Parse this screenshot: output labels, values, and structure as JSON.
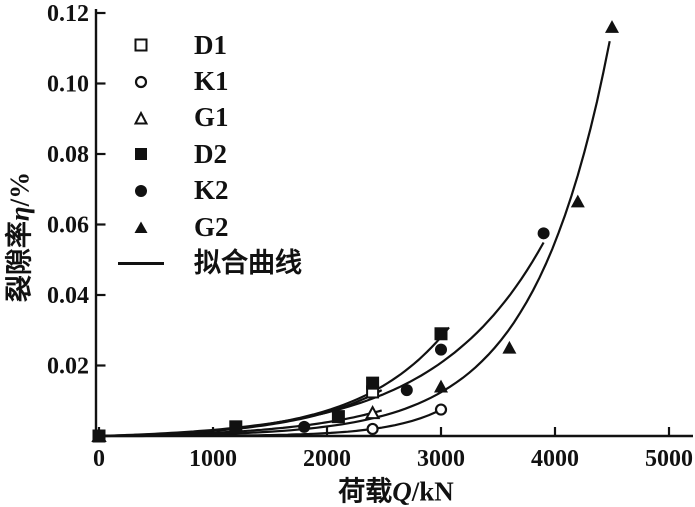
{
  "figure": {
    "background": "#ffffff",
    "ink": "#111111"
  },
  "chart_data": {
    "type": "scatter",
    "title": "",
    "xlabel": {
      "pre": "荷载",
      "var": "Q",
      "post": "/kN"
    },
    "ylabel": {
      "pre": "裂隙率",
      "var": "η",
      "post": "/%"
    },
    "xlim": [
      0,
      5000
    ],
    "ylim": [
      0,
      0.12
    ],
    "x_ticks": [
      0,
      1000,
      2000,
      3000,
      4000,
      5000
    ],
    "x_tick_labels": [
      "0",
      "1000",
      "2000",
      "3000",
      "4000",
      "5000"
    ],
    "y_ticks": [
      0.02,
      0.04,
      0.06,
      0.08,
      0.1,
      0.12
    ],
    "y_tick_labels": [
      "0.02",
      "0.04",
      "0.06",
      "0.08",
      "0.10",
      "0.12"
    ],
    "grid": false,
    "legend_position": "upper-left-inside",
    "legend": {
      "items": [
        {
          "label": "D1",
          "marker": "open-square"
        },
        {
          "label": "K1",
          "marker": "open-circle"
        },
        {
          "label": "G1",
          "marker": "open-triangle"
        },
        {
          "label": "D2",
          "marker": "filled-square"
        },
        {
          "label": "K2",
          "marker": "filled-circle"
        },
        {
          "label": "G2",
          "marker": "filled-triangle"
        },
        {
          "label": "拟合曲线",
          "marker": "line"
        }
      ]
    },
    "series": [
      {
        "name": "D1",
        "marker": "open-square",
        "points": [
          [
            0,
            0
          ],
          [
            2400,
            0.0125
          ]
        ],
        "fit": {
          "a": 0.00054,
          "b": 0.0013,
          "xend": 2480
        }
      },
      {
        "name": "K1",
        "marker": "open-circle",
        "points": [
          [
            0,
            0
          ],
          [
            2400,
            0.002
          ],
          [
            3000,
            0.0075
          ]
        ],
        "fit": {
          "a": 1.02e-05,
          "b": 0.0022,
          "xend": 3010
        }
      },
      {
        "name": "G1",
        "marker": "open-triangle",
        "points": [
          [
            0,
            0
          ],
          [
            2400,
            0.0065
          ]
        ],
        "fit": {
          "a": 0.00039,
          "b": 0.0012,
          "xend": 2480
        }
      },
      {
        "name": "D2",
        "marker": "filled-square",
        "points": [
          [
            0,
            0
          ],
          [
            1200,
            0.0026
          ],
          [
            2100,
            0.0055
          ],
          [
            2400,
            0.015
          ],
          [
            3000,
            0.029
          ]
        ],
        "fit": {
          "a": 0.00058,
          "b": 0.0013,
          "xend": 3070
        }
      },
      {
        "name": "K2",
        "marker": "filled-circle",
        "points": [
          [
            0,
            0
          ],
          [
            1800,
            0.0026
          ],
          [
            2700,
            0.013
          ],
          [
            3000,
            0.0245
          ],
          [
            3900,
            0.0575
          ]
        ],
        "fit": {
          "a": 0.00093,
          "b": 0.00105,
          "xend": 3900
        }
      },
      {
        "name": "G2",
        "marker": "filled-triangle",
        "points": [
          [
            0,
            0
          ],
          [
            3000,
            0.014
          ],
          [
            3600,
            0.025
          ],
          [
            4200,
            0.0665
          ],
          [
            4500,
            0.116
          ]
        ],
        "fit": {
          "a": 0.000148,
          "b": 0.00148,
          "xend": 4480
        }
      }
    ],
    "fit_curve_label": "拟合曲线"
  }
}
